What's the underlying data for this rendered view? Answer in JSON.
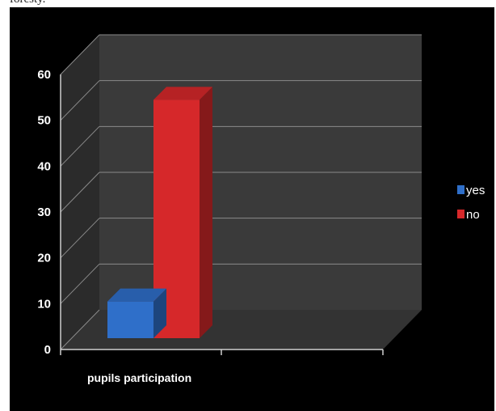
{
  "page": {
    "top_text": "foresty."
  },
  "chart_data": {
    "type": "bar",
    "categories": [
      "pupils participation"
    ],
    "series": [
      {
        "name": "yes",
        "values": [
          8
        ],
        "color": "#2f6fc9"
      },
      {
        "name": "no",
        "values": [
          52
        ],
        "color": "#d6282a"
      }
    ],
    "title": "",
    "xlabel": "",
    "ylabel": "",
    "ylim": [
      0,
      60
    ],
    "yticks": [
      "0",
      "10",
      "20",
      "30",
      "40",
      "50",
      "60"
    ],
    "grid": true,
    "legend": "right",
    "background": "#000000",
    "wall_color": "#3a3a3a"
  }
}
